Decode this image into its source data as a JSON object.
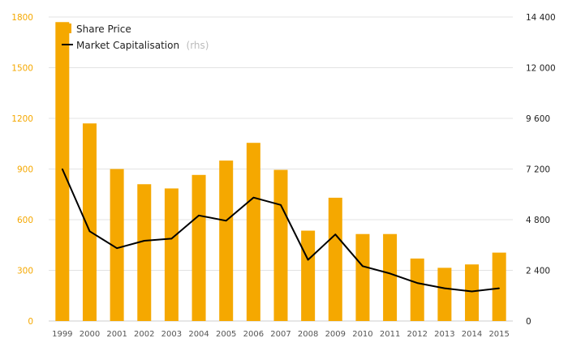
{
  "chart_data": {
    "type": "bar",
    "categories": [
      "1999",
      "2000",
      "2001",
      "2002",
      "2003",
      "2004",
      "2005",
      "2006",
      "2007",
      "2008",
      "2009",
      "2010",
      "2011",
      "2012",
      "2013",
      "2014",
      "2015"
    ],
    "series": [
      {
        "name": "Share Price",
        "type": "bar",
        "axis": "left",
        "color": "#f5a800",
        "values": [
          1770,
          1170,
          900,
          810,
          785,
          865,
          950,
          1055,
          895,
          535,
          730,
          515,
          515,
          370,
          315,
          335,
          405
        ]
      },
      {
        "name": "Market Capitalisation",
        "name_suffix": "(rhs)",
        "type": "line",
        "axis": "right",
        "color": "#000000",
        "values": [
          7200,
          4250,
          3450,
          3800,
          3900,
          5000,
          4750,
          5850,
          5500,
          2900,
          4100,
          2600,
          2250,
          1800,
          1550,
          1400,
          1550
        ]
      }
    ],
    "y_left": {
      "min": 0,
      "max": 1800,
      "ticks": [
        "0",
        "300",
        "600",
        "900",
        "1200",
        "1500",
        "1800"
      ]
    },
    "y_right": {
      "min": 0,
      "max": 14400,
      "ticks": [
        "0",
        "2 400",
        "4 800",
        "7 200",
        "9 600",
        "12 000",
        "14 400"
      ]
    },
    "grid": "horizontal",
    "legend_position": "top-left"
  }
}
